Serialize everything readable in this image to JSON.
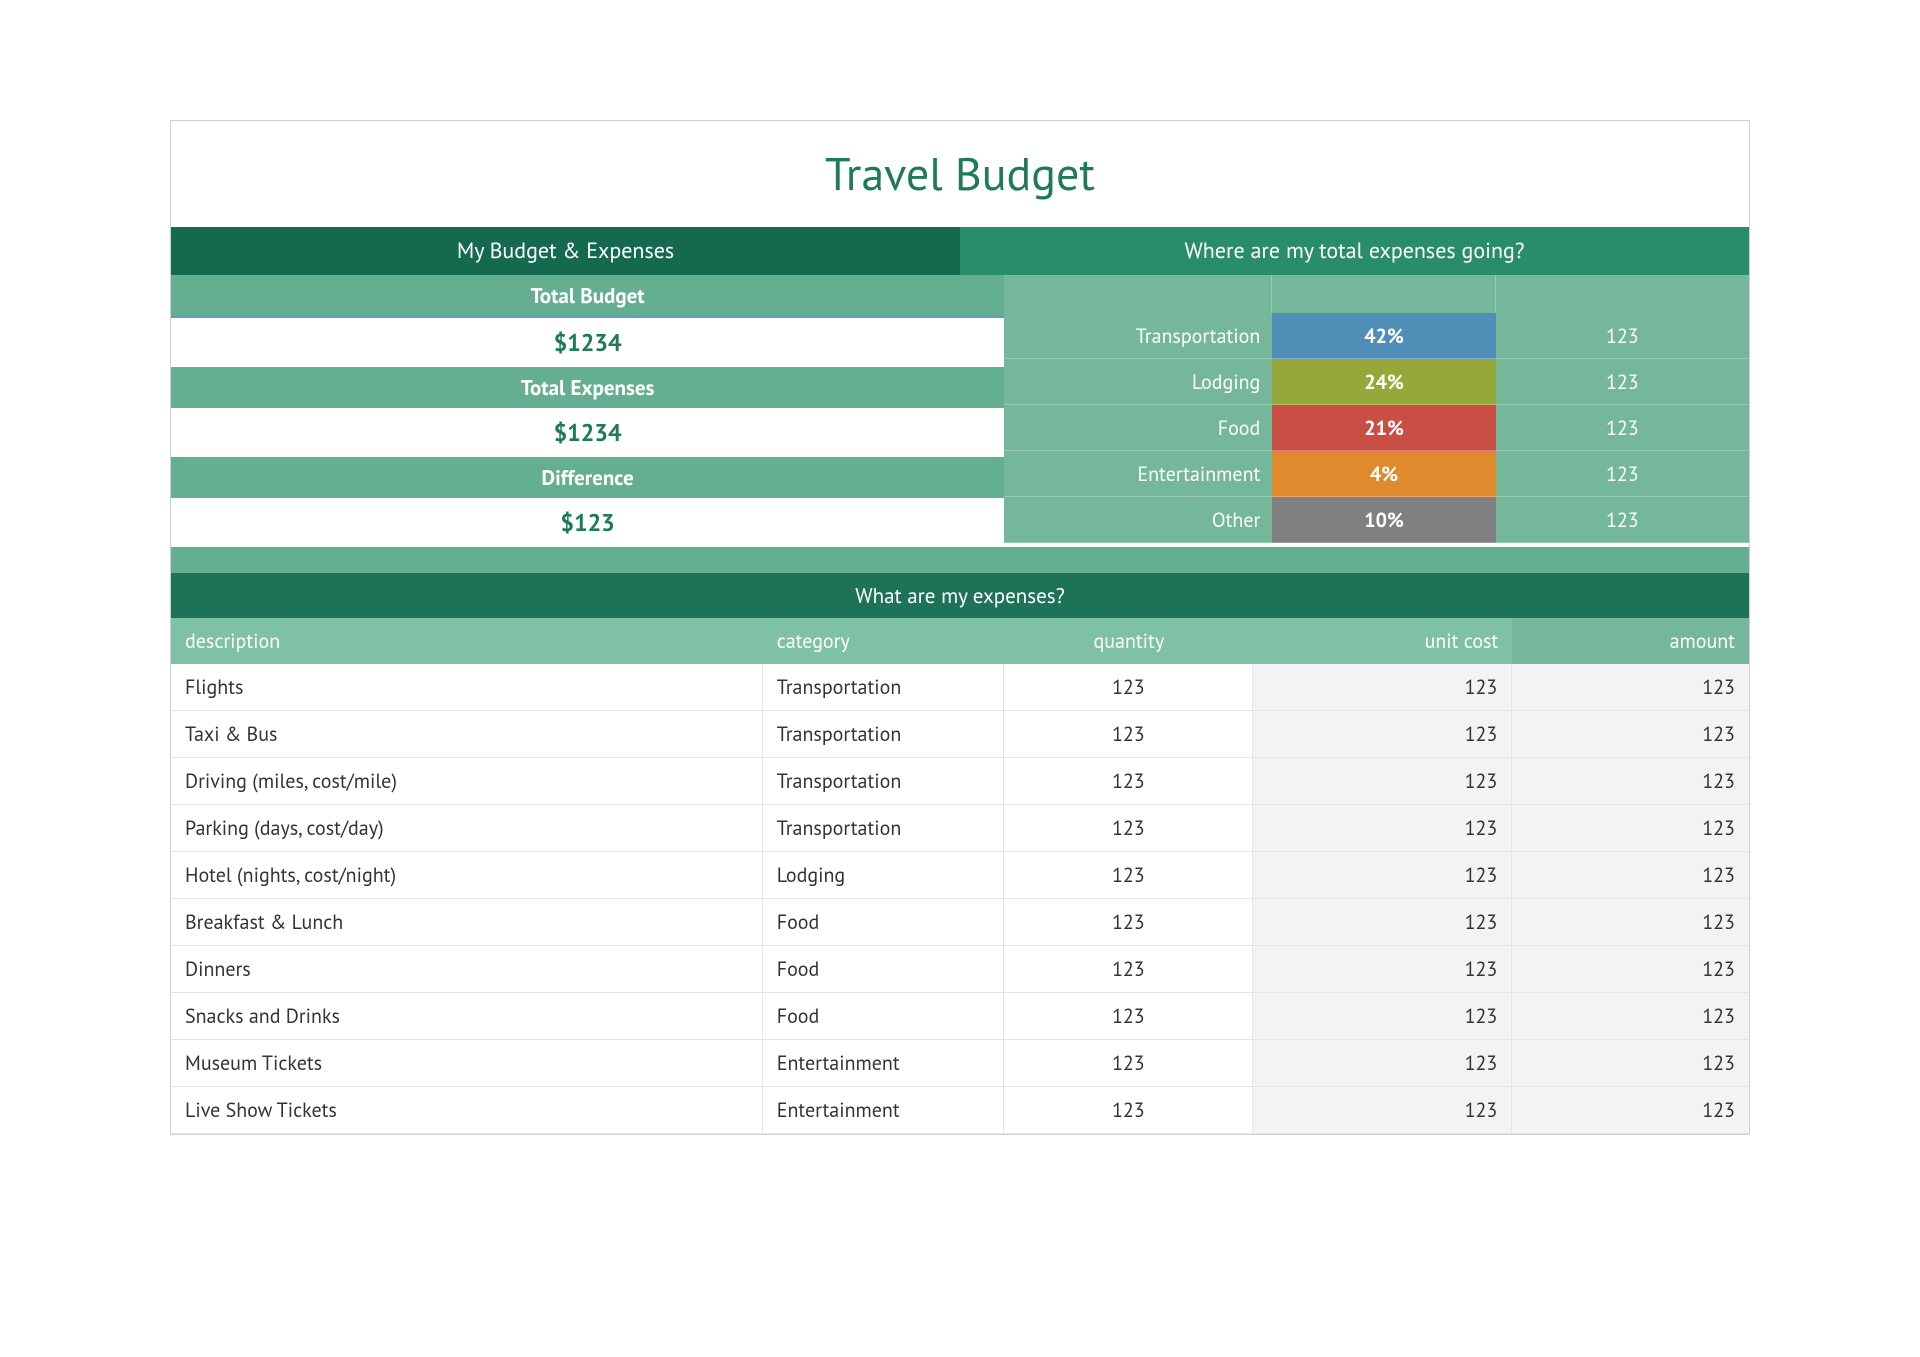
{
  "title": "Travel Budget",
  "colors": {
    "title_text": "#1f7a5a",
    "dark_green": "#15694e",
    "mid_green": "#2a8d6a",
    "green_a": "#64af90",
    "green_b": "#74b79a",
    "green_c": "#7fc1a4",
    "section_header": "#1e7257",
    "value_text": "#1f7a5a",
    "alt_bg": "#f3f3f3",
    "border": "#e5e5e5"
  },
  "banner": {
    "left": "My Budget & Expenses",
    "right": "Where are my total expenses going?"
  },
  "summary": {
    "total_budget_label": "Total Budget",
    "total_budget_value": "$1234",
    "total_expenses_label": "Total Expenses",
    "total_expenses_value": "$1234",
    "difference_label": "Difference",
    "difference_value": "$123"
  },
  "breakdown": [
    {
      "label": "Transportation",
      "pct": "42%",
      "value": "123",
      "color": "#4f8fb7"
    },
    {
      "label": "Lodging",
      "pct": "24%",
      "value": "123",
      "color": "#97a83b"
    },
    {
      "label": "Food",
      "pct": "21%",
      "value": "123",
      "color": "#c94f44"
    },
    {
      "label": "Entertainment",
      "pct": "4%",
      "value": "123",
      "color": "#e08a2e"
    },
    {
      "label": "Other",
      "pct": "10%",
      "value": "123",
      "color": "#808080"
    }
  ],
  "expenses": {
    "section_title": "What are my expenses?",
    "columns": {
      "description": "description",
      "category": "category",
      "quantity": "quantity",
      "unit_cost": "unit cost",
      "amount": "amount"
    },
    "rows": [
      {
        "description": "Flights",
        "category": "Transportation",
        "quantity": "123",
        "unit_cost": "123",
        "amount": "123"
      },
      {
        "description": "Taxi & Bus",
        "category": "Transportation",
        "quantity": "123",
        "unit_cost": "123",
        "amount": "123"
      },
      {
        "description": "Driving (miles, cost/mile)",
        "category": "Transportation",
        "quantity": "123",
        "unit_cost": "123",
        "amount": "123"
      },
      {
        "description": "Parking (days, cost/day)",
        "category": "Transportation",
        "quantity": "123",
        "unit_cost": "123",
        "amount": "123"
      },
      {
        "description": "Hotel (nights, cost/night)",
        "category": "Lodging",
        "quantity": "123",
        "unit_cost": "123",
        "amount": "123"
      },
      {
        "description": "Breakfast & Lunch",
        "category": "Food",
        "quantity": "123",
        "unit_cost": "123",
        "amount": "123"
      },
      {
        "description": "Dinners",
        "category": "Food",
        "quantity": "123",
        "unit_cost": "123",
        "amount": "123"
      },
      {
        "description": "Snacks and Drinks",
        "category": "Food",
        "quantity": "123",
        "unit_cost": "123",
        "amount": "123"
      },
      {
        "description": "Museum Tickets",
        "category": "Entertainment",
        "quantity": "123",
        "unit_cost": "123",
        "amount": "123"
      },
      {
        "description": "Live Show Tickets",
        "category": "Entertainment",
        "quantity": "123",
        "unit_cost": "123",
        "amount": "123"
      }
    ]
  }
}
